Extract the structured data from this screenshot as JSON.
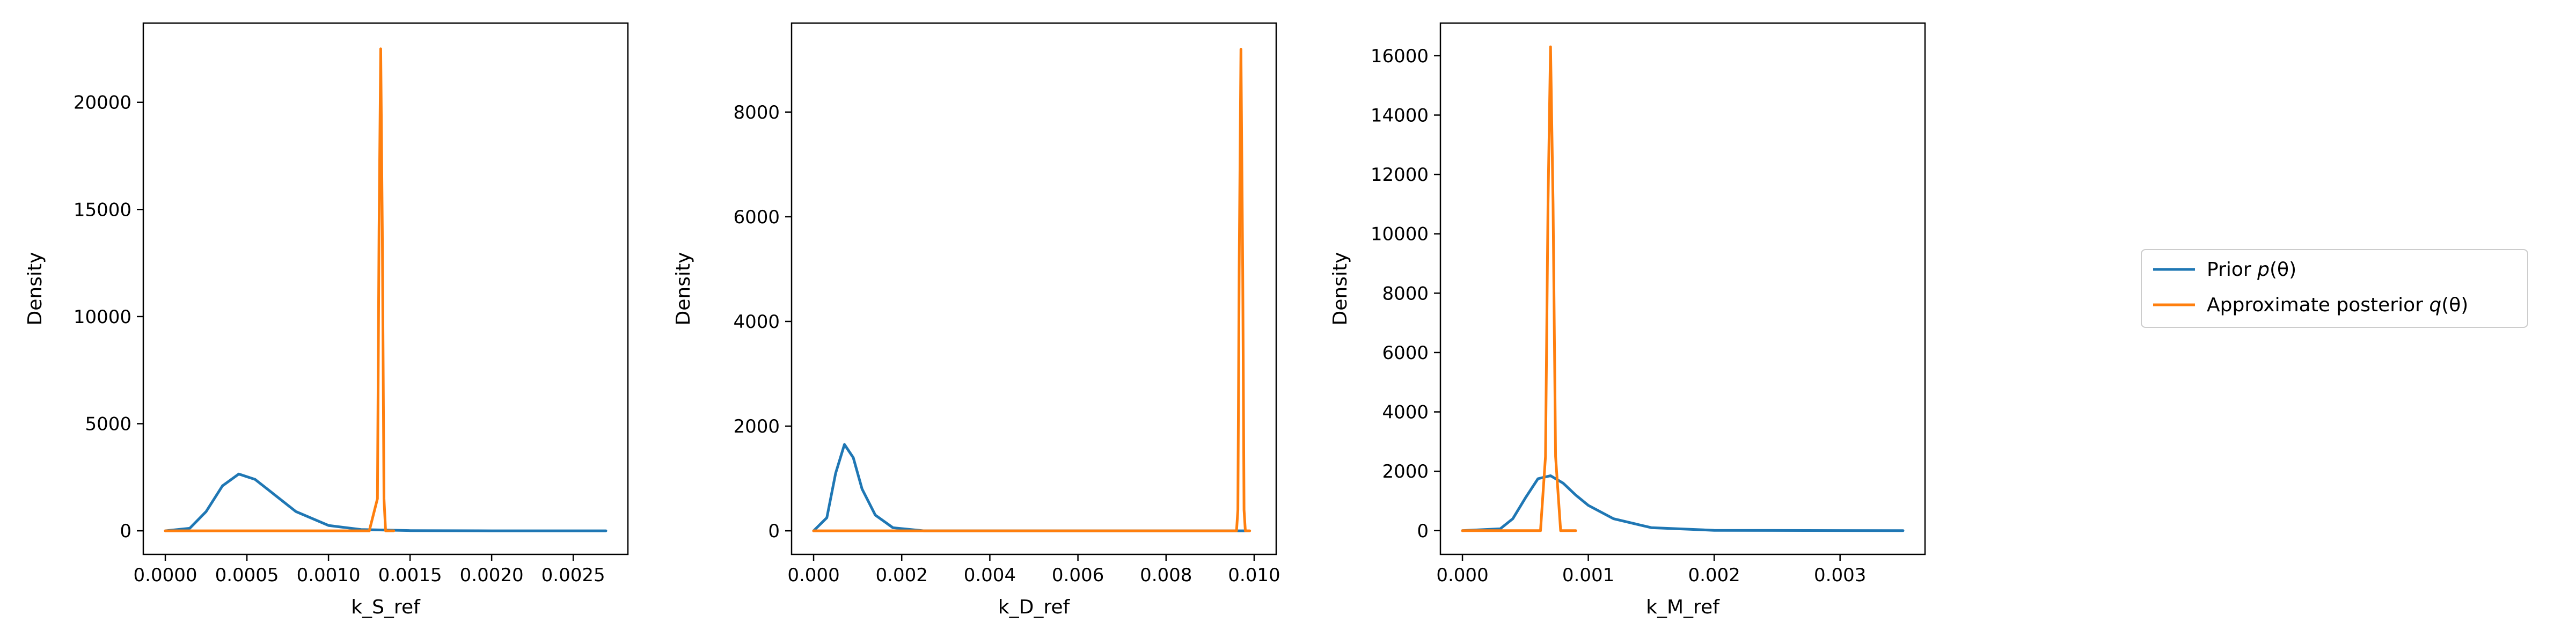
{
  "chart_data": [
    {
      "type": "line",
      "xlabel": "k_S_ref",
      "ylabel": "Density",
      "xlim": [
        -0.000135,
        0.002835
      ],
      "ylim": [
        -1100,
        23700
      ],
      "xticks": [
        0.0,
        0.0005,
        0.001,
        0.0015,
        0.002,
        0.0025
      ],
      "xtick_labels": [
        "0.0000",
        "0.0005",
        "0.0010",
        "0.0015",
        "0.0020",
        "0.0025"
      ],
      "yticks": [
        0,
        5000,
        10000,
        15000,
        20000
      ],
      "ytick_labels": [
        "0",
        "5000",
        "10000",
        "15000",
        "20000"
      ],
      "series": [
        {
          "name": "Prior p(θ)",
          "color": "#1f77b4",
          "x": [
            0.0,
            0.00015,
            0.00025,
            0.00035,
            0.00045,
            0.00055,
            0.00065,
            0.0008,
            0.001,
            0.0012,
            0.0015,
            0.002,
            0.0027
          ],
          "y": [
            0,
            120,
            900,
            2100,
            2650,
            2400,
            1800,
            900,
            250,
            60,
            10,
            0,
            0
          ]
        },
        {
          "name": "Approximate posterior q(θ)",
          "color": "#ff7f0e",
          "x": [
            0.0,
            0.00125,
            0.0013,
            0.00131,
            0.00132,
            0.00133,
            0.00134,
            0.00135,
            0.0014
          ],
          "y": [
            0,
            0,
            1500,
            14000,
            22500,
            14000,
            1500,
            0,
            0
          ]
        }
      ]
    },
    {
      "type": "line",
      "xlabel": "k_D_ref",
      "ylabel": "Density",
      "xlim": [
        -0.0005,
        0.0105
      ],
      "ylim": [
        -450,
        9700
      ],
      "xticks": [
        0.0,
        0.002,
        0.004,
        0.006,
        0.008,
        0.01
      ],
      "xtick_labels": [
        "0.000",
        "0.002",
        "0.004",
        "0.006",
        "0.008",
        "0.010"
      ],
      "yticks": [
        0,
        2000,
        4000,
        6000,
        8000
      ],
      "ytick_labels": [
        "0",
        "2000",
        "4000",
        "6000",
        "8000"
      ],
      "series": [
        {
          "name": "Prior p(θ)",
          "color": "#1f77b4",
          "x": [
            0.0,
            0.0003,
            0.0005,
            0.0007,
            0.0009,
            0.0011,
            0.0014,
            0.0018,
            0.0025,
            0.0098
          ],
          "y": [
            0,
            250,
            1100,
            1650,
            1400,
            800,
            300,
            60,
            0,
            0
          ]
        },
        {
          "name": "Approximate posterior q(θ)",
          "color": "#ff7f0e",
          "x": [
            0.0,
            0.0096,
            0.00963,
            0.00966,
            0.0097,
            0.00974,
            0.00977,
            0.0098,
            0.0099
          ],
          "y": [
            0,
            0,
            400,
            5000,
            9200,
            5000,
            400,
            0,
            0
          ]
        }
      ]
    },
    {
      "type": "line",
      "xlabel": "k_M_ref",
      "ylabel": "Density",
      "xlim": [
        -0.000175,
        0.003675
      ],
      "ylim": [
        -800,
        17100
      ],
      "xticks": [
        0.0,
        0.001,
        0.002,
        0.003
      ],
      "xtick_labels": [
        "0.000",
        "0.001",
        "0.002",
        "0.003"
      ],
      "yticks": [
        0,
        2000,
        4000,
        6000,
        8000,
        10000,
        12000,
        14000,
        16000
      ],
      "ytick_labels": [
        "0",
        "2000",
        "4000",
        "6000",
        "8000",
        "10000",
        "12000",
        "14000",
        "16000"
      ],
      "series": [
        {
          "name": "Prior p(θ)",
          "color": "#1f77b4",
          "x": [
            0.0,
            0.0003,
            0.0004,
            0.0005,
            0.0006,
            0.0007,
            0.0008,
            0.0009,
            0.001,
            0.0012,
            0.0015,
            0.002,
            0.0035
          ],
          "y": [
            0,
            60,
            400,
            1100,
            1750,
            1850,
            1600,
            1200,
            850,
            400,
            100,
            10,
            0
          ]
        },
        {
          "name": "Approximate posterior q(θ)",
          "color": "#ff7f0e",
          "x": [
            0.0,
            0.00062,
            0.00066,
            0.00068,
            0.0007,
            0.00072,
            0.00074,
            0.00078,
            0.0009
          ],
          "y": [
            0,
            0,
            2500,
            11000,
            16300,
            11000,
            2500,
            0,
            0
          ]
        }
      ]
    }
  ],
  "legend": {
    "placement": "right",
    "entries": [
      {
        "label_text": "Prior ",
        "label_math": "p",
        "label_tail": "(θ)",
        "color": "#1f77b4"
      },
      {
        "label_text": "Approximate posterior ",
        "label_math": "q",
        "label_tail": "(θ)",
        "color": "#ff7f0e"
      }
    ]
  }
}
